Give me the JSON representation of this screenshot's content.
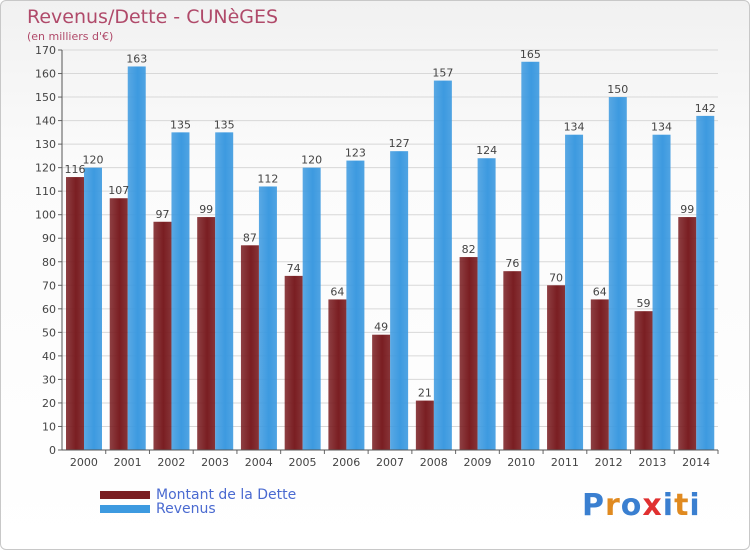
{
  "chart_data": {
    "type": "bar",
    "title": "Revenus/Dette - CUNèGES",
    "subtitle": "(en milliers d'€)",
    "categories": [
      "2000",
      "2001",
      "2002",
      "2003",
      "2004",
      "2005",
      "2006",
      "2007",
      "2008",
      "2009",
      "2010",
      "2011",
      "2012",
      "2013",
      "2014"
    ],
    "series": [
      {
        "name": "Montant de la Dette",
        "color": "#7a1e22",
        "values": [
          116,
          107,
          97,
          99,
          87,
          74,
          64,
          49,
          21,
          82,
          76,
          70,
          64,
          59,
          99
        ]
      },
      {
        "name": "Revenus",
        "color": "#3d9ae0",
        "values": [
          120,
          163,
          135,
          135,
          112,
          120,
          123,
          127,
          157,
          124,
          165,
          134,
          150,
          134,
          142
        ]
      }
    ],
    "ylim": [
      0,
      170
    ],
    "yticks": [
      0,
      10,
      20,
      30,
      40,
      50,
      60,
      70,
      80,
      90,
      100,
      110,
      120,
      130,
      140,
      150,
      160,
      170
    ],
    "grid": true,
    "legend_position": "bottom-left"
  },
  "logo": {
    "letters": [
      "P",
      "r",
      "o",
      "x",
      "i",
      "t",
      "i"
    ],
    "colors": [
      "#3a7fd0",
      "#e08a20",
      "#3a7fd0",
      "#e03030",
      "#3a7fd0",
      "#e08a20",
      "#3a7fd0"
    ]
  }
}
